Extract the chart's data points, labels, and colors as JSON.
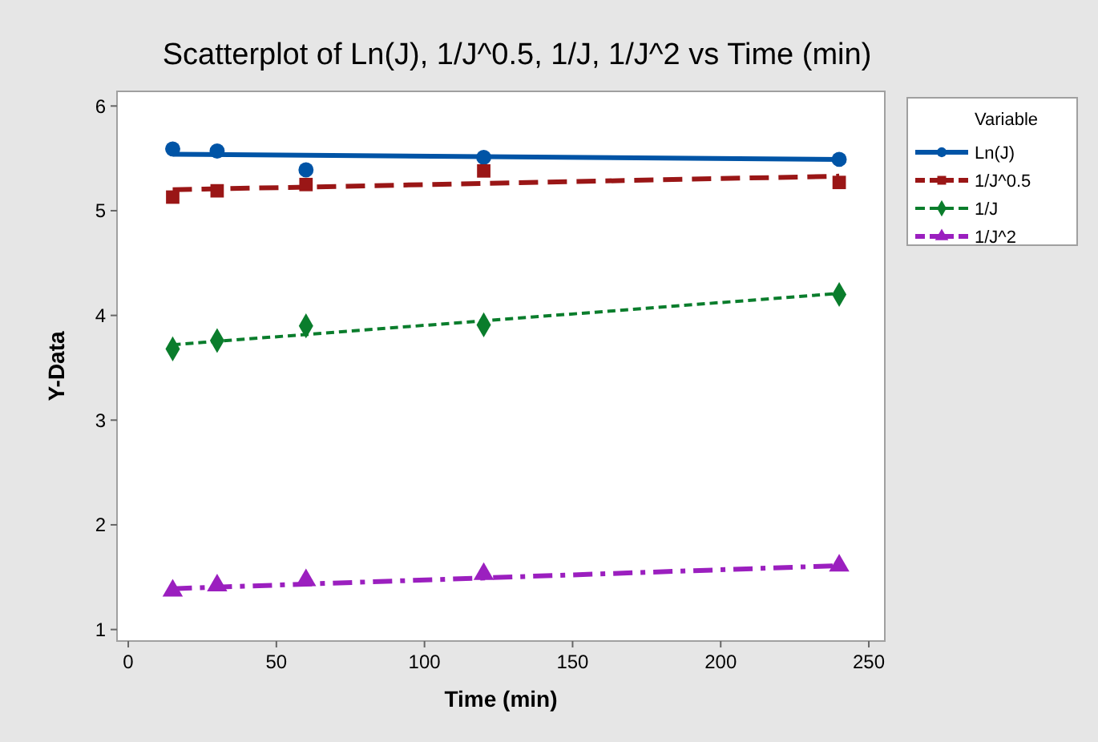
{
  "chart_data": {
    "type": "scatter",
    "title": "Scatterplot of Ln(J), 1/J^0.5, 1/J, 1/J^2 vs Time (min)",
    "xlabel": "Time (min)",
    "ylabel": "Y-Data",
    "legend_title": "Variable",
    "legend": "right",
    "grid": false,
    "xlim": [
      -3.8,
      255.4
    ],
    "xticks": [
      0,
      50,
      100,
      150,
      200,
      250
    ],
    "ylim": [
      0.89,
      6.14
    ],
    "yticks": [
      1,
      2,
      3,
      4,
      5,
      6
    ],
    "series": [
      {
        "name": "Ln(J)",
        "color": "#0054a6",
        "marker": "circle",
        "line_style": "solid",
        "x": [
          15,
          30,
          60,
          120,
          240
        ],
        "values": [
          5.59,
          5.57,
          5.39,
          5.51,
          5.49
        ]
      },
      {
        "name": "1/J^0.5",
        "color": "#9a1616",
        "marker": "square",
        "line_style": "dashed",
        "x": [
          15,
          30,
          60,
          120,
          240
        ],
        "values": [
          5.13,
          5.19,
          5.25,
          5.38,
          5.27
        ]
      },
      {
        "name": "1/J",
        "color": "#0a7d2c",
        "marker": "diamond",
        "line_style": "dotted",
        "x": [
          15,
          30,
          60,
          120,
          240
        ],
        "values": [
          3.68,
          3.76,
          3.9,
          3.91,
          4.2
        ]
      },
      {
        "name": "1/J^2",
        "color": "#9b1fbf",
        "marker": "triangle",
        "line_style": "dashdot",
        "x": [
          15,
          30,
          60,
          120,
          240
        ],
        "values": [
          1.37,
          1.42,
          1.47,
          1.53,
          1.61
        ]
      },
      {
        "type": "line",
        "color": "#0054a6",
        "line_style": "solid",
        "x": [
          15,
          240
        ],
        "values": [
          5.54,
          5.49
        ]
      },
      {
        "type": "line",
        "color": "#9a1616",
        "line_style": "dashed",
        "x": [
          15,
          240
        ],
        "values": [
          5.2,
          5.33
        ]
      },
      {
        "type": "line",
        "color": "#0a7d2c",
        "line_style": "dotted",
        "x": [
          15,
          240
        ],
        "values": [
          3.72,
          4.21
        ]
      },
      {
        "type": "line",
        "color": "#9b1fbf",
        "line_style": "dashdot",
        "x": [
          15,
          240
        ],
        "values": [
          1.39,
          1.61
        ]
      }
    ]
  }
}
